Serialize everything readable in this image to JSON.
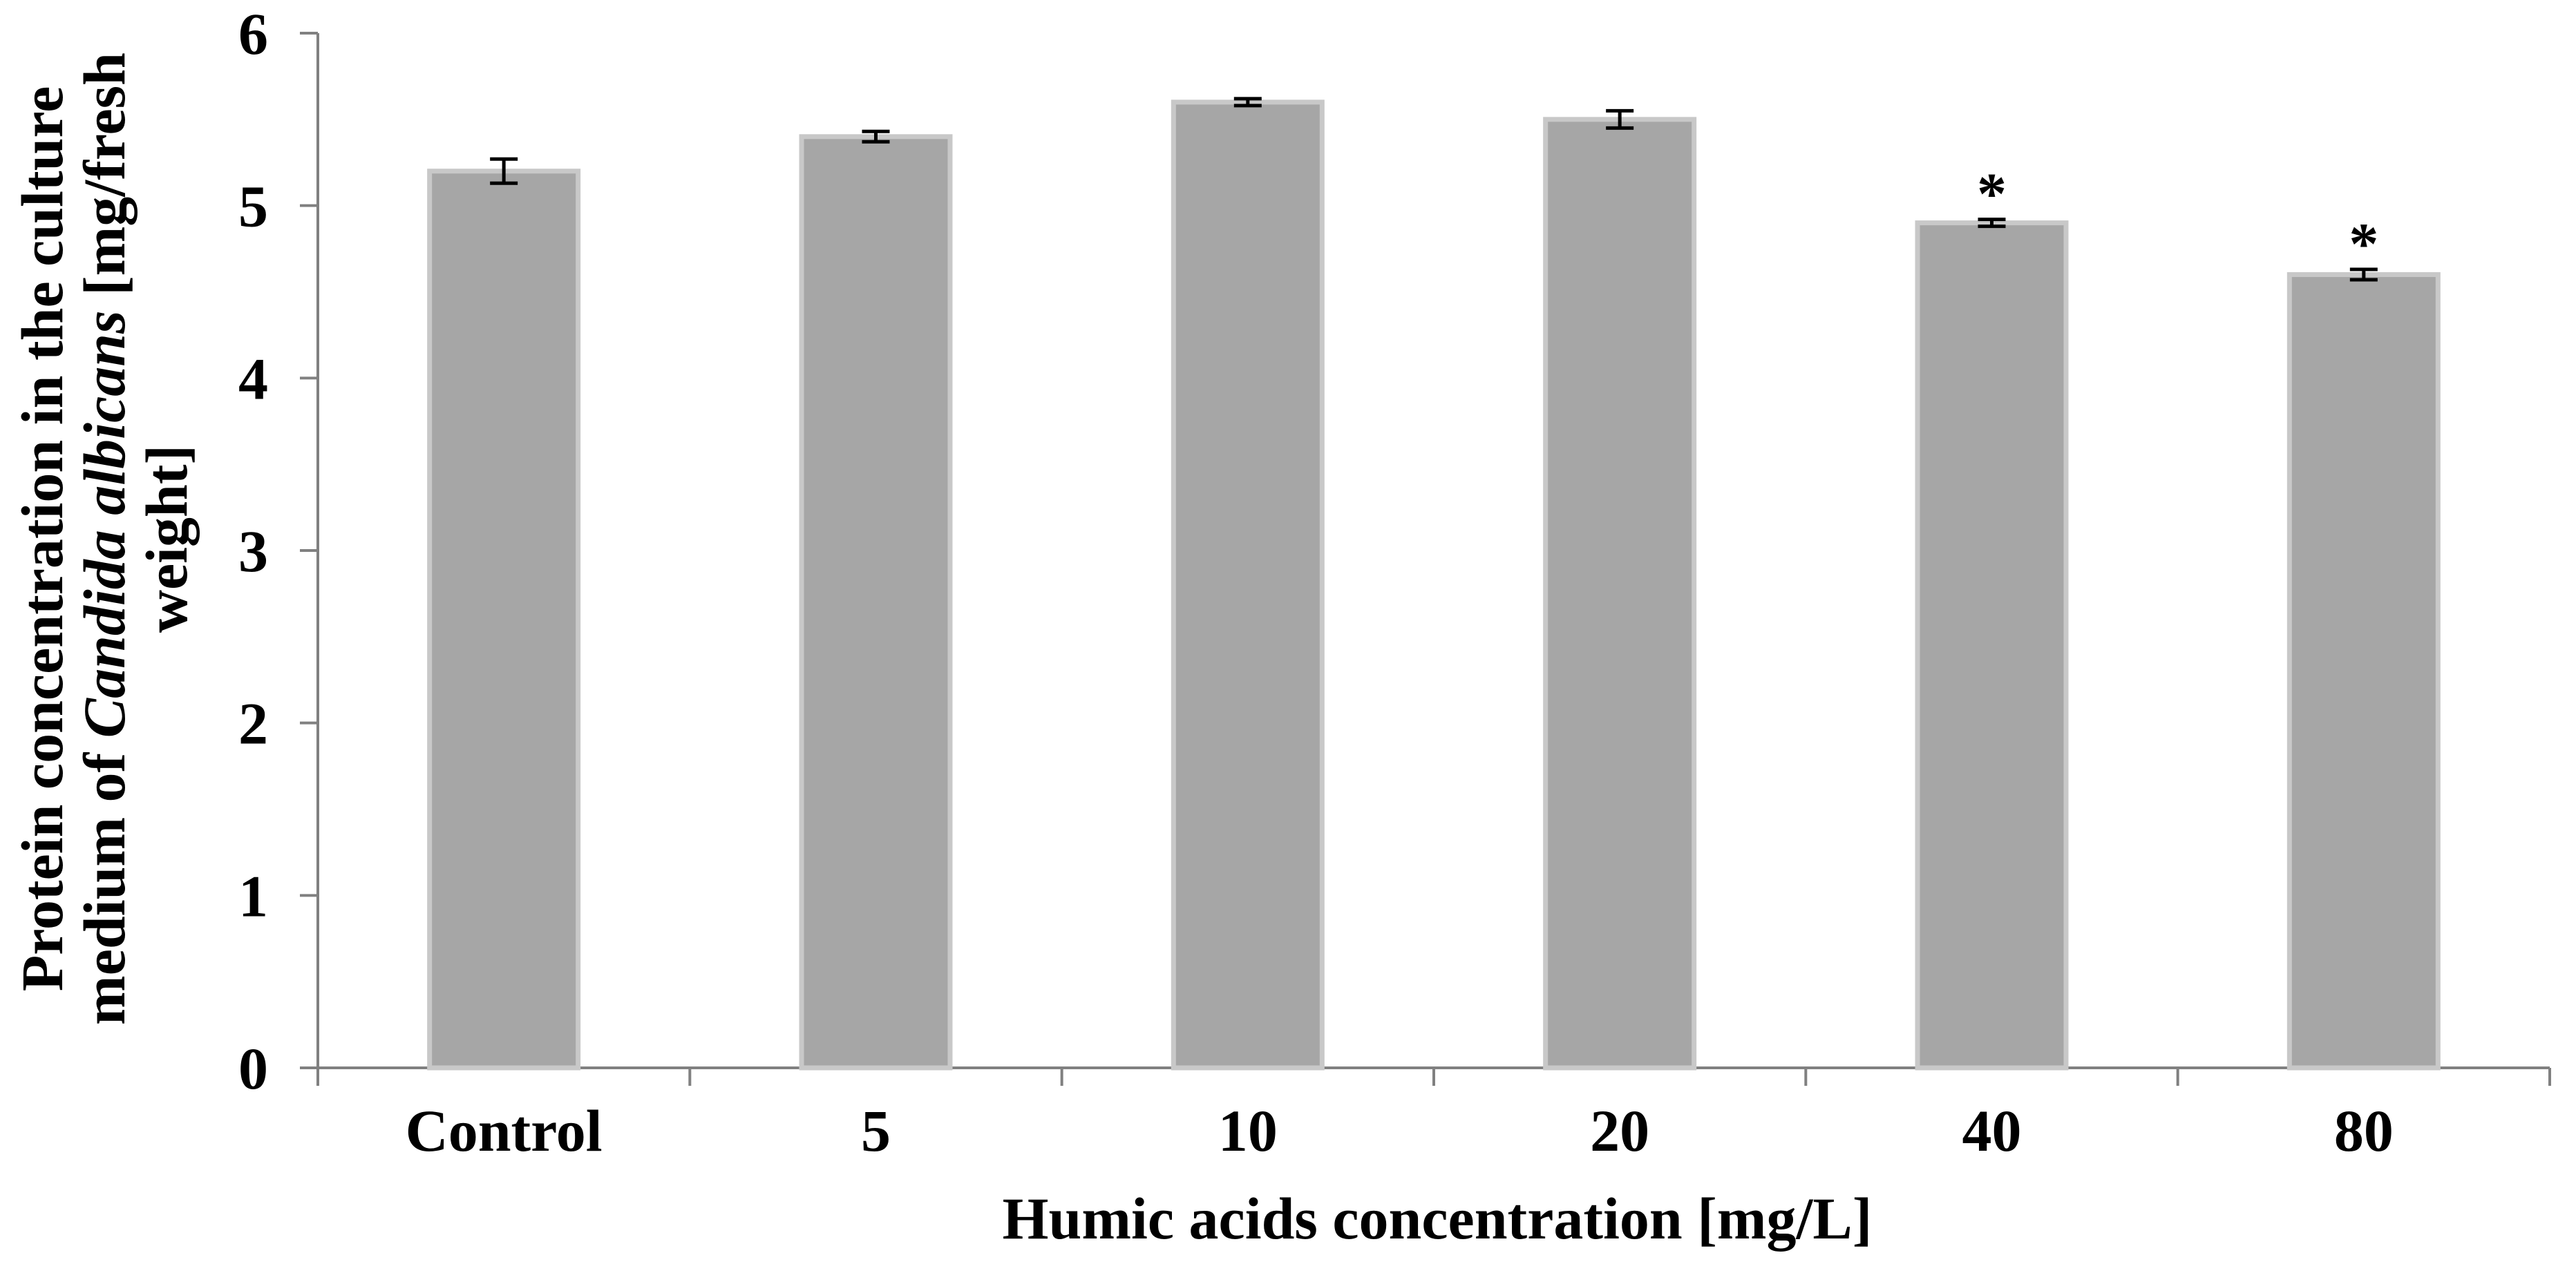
{
  "chart_data": {
    "type": "bar",
    "title": "",
    "categories": [
      "Control",
      "5",
      "10",
      "20",
      "40",
      "80"
    ],
    "series": [
      {
        "values": [
          5.2,
          5.4,
          5.6,
          5.5,
          4.9,
          4.6
        ],
        "error": [
          0.07,
          0.03,
          0.02,
          0.05,
          0.02,
          0.03
        ],
        "significance": [
          "",
          "",
          "",
          "",
          "*",
          "*"
        ]
      }
    ],
    "xlabel": "Humic acids concentration [mg/L]",
    "ylabel_parts": {
      "line1": "Protein concentration in the culture",
      "line2_before": "medium of ",
      "line2_italic": "Candida albicans",
      "line2_after": " [mg/fresh",
      "line3": "weight]"
    },
    "ylim": [
      0,
      6
    ],
    "yticks": [
      0,
      1,
      2,
      3,
      4,
      5,
      6
    ],
    "grid": false,
    "legend": "none",
    "colors": {
      "bar_fill": "#a6a6a6",
      "bar_stroke": "#c8c8c8",
      "axis": "#808080",
      "text": "#000000"
    }
  }
}
